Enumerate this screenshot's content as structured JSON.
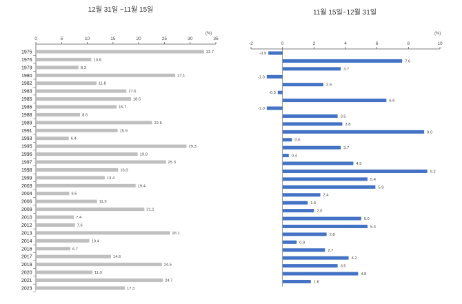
{
  "chart_data": [
    {
      "type": "bar",
      "orientation": "horizontal",
      "title": "12월 31일 ~11월 15일",
      "unit": "(%)",
      "xlim": [
        0,
        35
      ],
      "ticks": [
        "0",
        "5",
        "10",
        "15",
        "20",
        "25",
        "30",
        "35"
      ],
      "tick_values": [
        0,
        5,
        10,
        15,
        20,
        25,
        30,
        35
      ],
      "color": "#bfbfbf",
      "categories": [
        "1975",
        "1976",
        "1979",
        "1980",
        "1982",
        "1983",
        "1985",
        "1986",
        "1988",
        "1989",
        "1991",
        "1993",
        "1995",
        "1996",
        "1997",
        "1998",
        "1999",
        "2003",
        "2004",
        "2006",
        "2009",
        "2010",
        "2012",
        "2013",
        "2014",
        "2016",
        "2017",
        "2019",
        "2020",
        "2021",
        "2023"
      ],
      "values": [
        32.7,
        10.8,
        8.3,
        27.1,
        11.8,
        17.6,
        18.5,
        15.7,
        8.6,
        22.6,
        15.9,
        6.4,
        29.3,
        19.8,
        25.3,
        16.0,
        13.4,
        19.4,
        6.5,
        11.9,
        21.1,
        7.4,
        7.6,
        26.1,
        10.4,
        6.7,
        14.6,
        24.5,
        11.0,
        24.7,
        17.3
      ],
      "labels": [
        "32.7",
        "10.8",
        "8.3",
        "27.1",
        "11.8",
        "17.6",
        "18.5",
        "15.7",
        "8.6",
        "22.6",
        "15.9",
        "6.4",
        "29.3",
        "19.8",
        "25.3",
        "16.0",
        "13.4",
        "19.4",
        "6.5",
        "11.9",
        "21.1",
        "7.4",
        "7.6",
        "26.1",
        "10.4",
        "6.7",
        "14.6",
        "24.5",
        "11.0",
        "24.7",
        "17.3"
      ]
    },
    {
      "type": "bar",
      "orientation": "horizontal",
      "title": "11월 15일~12월 31일",
      "unit": "(%)",
      "xlim": [
        -2,
        10
      ],
      "ticks": [
        "-2",
        "0",
        "2",
        "4",
        "6",
        "8",
        "10"
      ],
      "tick_values": [
        -2,
        0,
        2,
        4,
        6,
        8,
        10
      ],
      "color": "#4472c4",
      "values": [
        -0.9,
        7.6,
        3.7,
        -1.0,
        2.6,
        -0.3,
        6.6,
        -1.0,
        3.5,
        3.8,
        9.0,
        0.6,
        3.7,
        0.4,
        4.5,
        9.2,
        5.4,
        5.9,
        2.4,
        1.6,
        2.0,
        5.0,
        5.4,
        2.8,
        0.9,
        2.7,
        4.2,
        3.5,
        4.8,
        1.8
      ],
      "labels": [
        "-0.9",
        "7.6",
        "3.7",
        "-1.0",
        "2.6",
        "-0.3",
        "6.6",
        "-1.0",
        "3.5",
        "3.8",
        "9.0",
        "0.6",
        "3.7",
        "0.4",
        "4.5",
        "9.2",
        "5.4",
        "5.9",
        "2.4",
        "1.6",
        "2.0",
        "5.0",
        "5.4",
        "2.8",
        "0.9",
        "2.7",
        "4.2",
        "3.5",
        "4.8",
        "1.8"
      ]
    }
  ]
}
